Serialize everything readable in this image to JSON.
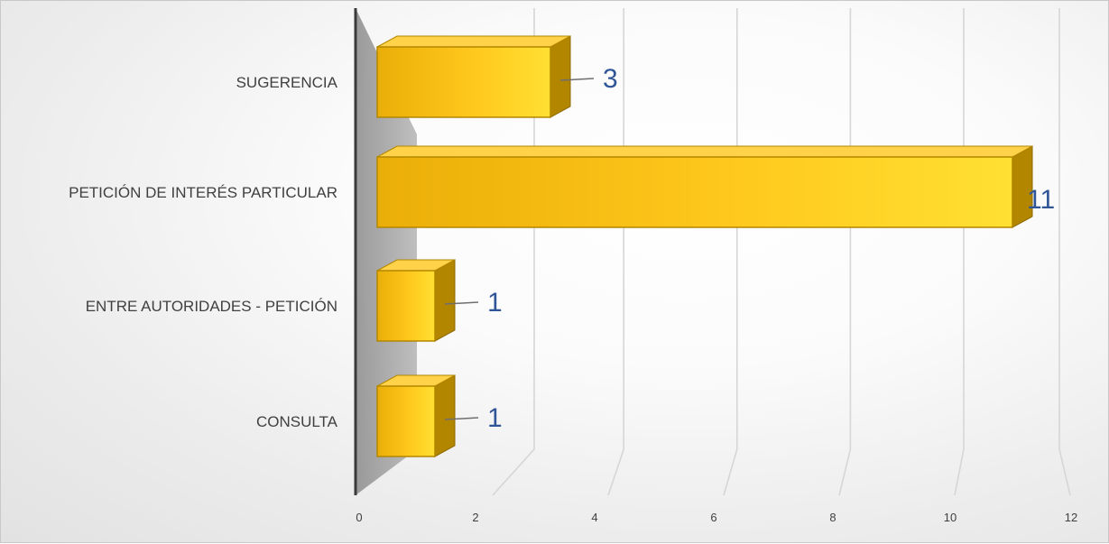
{
  "chart_data": {
    "type": "bar",
    "orientation": "horizontal",
    "three_d": true,
    "categories": [
      "SUGERENCIA",
      "PETICIÓN DE INTERÉS PARTICULAR",
      "ENTRE AUTORIDADES - PETICIÓN",
      "CONSULTA"
    ],
    "values": [
      3,
      11,
      1,
      1
    ],
    "data_labels": [
      "3",
      "11",
      "1",
      "1"
    ],
    "x_ticks": [
      "0",
      "2",
      "4",
      "6",
      "8",
      "10",
      "12"
    ],
    "xlim": [
      0,
      12
    ],
    "grid": true,
    "legend": "none",
    "bar_color": "#ffc000",
    "label_color": "#2f5597"
  }
}
